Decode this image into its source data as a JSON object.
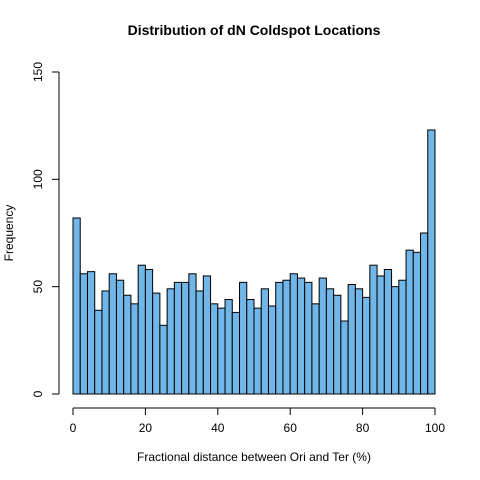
{
  "chart_data": {
    "type": "bar",
    "title": "Distribution of dN Coldspot Locations",
    "xlabel": "Fractional distance between Ori and Ter (%)",
    "ylabel": "Frequency",
    "xlim": [
      0,
      100
    ],
    "ylim": [
      0,
      150
    ],
    "bin_width": 2,
    "bins_start": [
      0,
      2,
      4,
      6,
      8,
      10,
      12,
      14,
      16,
      18,
      20,
      22,
      24,
      26,
      28,
      30,
      32,
      34,
      36,
      38,
      40,
      42,
      44,
      46,
      48,
      50,
      52,
      54,
      56,
      58,
      60,
      62,
      64,
      66,
      68,
      70,
      72,
      74,
      76,
      78,
      80,
      82,
      84,
      86,
      88,
      90,
      92,
      94,
      96,
      98
    ],
    "values": [
      82,
      56,
      57,
      39,
      48,
      56,
      53,
      46,
      42,
      60,
      58,
      47,
      32,
      49,
      52,
      52,
      56,
      48,
      55,
      42,
      40,
      44,
      38,
      52,
      44,
      40,
      49,
      41,
      52,
      53,
      56,
      54,
      52,
      42,
      54,
      49,
      46,
      34,
      51,
      49,
      45,
      60,
      55,
      58,
      50,
      53,
      67,
      66,
      75,
      123
    ],
    "x_ticks": [
      "0",
      "20",
      "40",
      "60",
      "80",
      "100"
    ],
    "y_ticks": [
      "0",
      "50",
      "100",
      "150"
    ],
    "grid": false,
    "legend": "none",
    "bar_color": "#71B6E8",
    "edge_color": "#000000"
  }
}
